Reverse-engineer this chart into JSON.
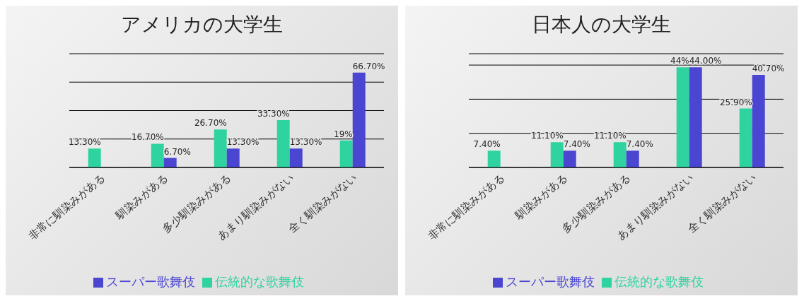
{
  "chart_data": [
    {
      "type": "bar",
      "title": "アメリカの大学生",
      "categories": [
        "非常に馴染みがある",
        "馴染みがある",
        "多少馴染みがある",
        "あまり馴染みがない",
        "全く馴染みがない"
      ],
      "series": [
        {
          "name": "伝統的な歌舞伎",
          "color": "#2ed3a0",
          "values": [
            13.3,
            16.7,
            26.7,
            33.3,
            19
          ],
          "value_labels": [
            "13.30%",
            "16.70%",
            "26.70%",
            "33.30%",
            "19%"
          ]
        },
        {
          "name": "スーパー歌舞伎",
          "color": "#4b46d2",
          "values": [
            null,
            6.7,
            13.3,
            13.3,
            66.7
          ],
          "value_labels": [
            null,
            "6.70%",
            "13.30%",
            "13.30%",
            "66.70%"
          ]
        }
      ],
      "ylim": [
        0,
        80
      ],
      "grid": "y",
      "legend": "bottom",
      "tick_labels": "x"
    },
    {
      "type": "bar",
      "title": "日本人の大学生",
      "categories": [
        "非常に馴染みがある",
        "馴染みがある",
        "多少馴染みがある",
        "あまり馴染みがない",
        "全く馴染みがない"
      ],
      "series": [
        {
          "name": "伝統的な歌舞伎",
          "color": "#2ed3a0",
          "values": [
            7.4,
            11.1,
            11.1,
            44,
            25.9
          ],
          "value_labels": [
            "7.40%",
            "11.10%",
            "11.10%",
            "44%",
            "25.90%"
          ]
        },
        {
          "name": "スーパー歌舞伎",
          "color": "#4b46d2",
          "values": [
            null,
            7.4,
            7.4,
            44,
            40.7
          ],
          "value_labels": [
            null,
            "7.40%",
            "7.40%",
            "44.00%",
            "40.70%"
          ]
        }
      ],
      "ylim": [
        0,
        50
      ],
      "grid": "y",
      "legend": "bottom",
      "tick_labels": "x"
    }
  ]
}
